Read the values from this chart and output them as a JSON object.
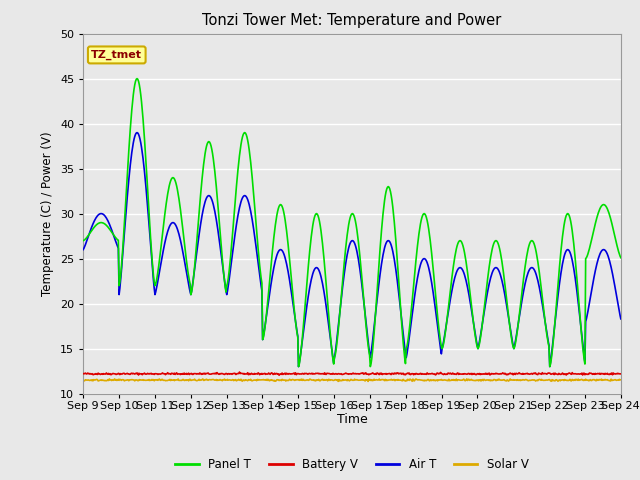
{
  "title": "Tonzi Tower Met: Temperature and Power",
  "xlabel": "Time",
  "ylabel": "Temperature (C) / Power (V)",
  "ylim": [
    10,
    50
  ],
  "background_color": "#e8e8e8",
  "plot_bg_color": "#e8e8e8",
  "annotation_text": "TZ_tmet",
  "annotation_color": "#8b0000",
  "annotation_bg": "#ffff99",
  "annotation_edge": "#ccaa00",
  "xtick_labels": [
    "Sep 9",
    "Sep 10",
    "Sep 11",
    "Sep 12",
    "Sep 13",
    "Sep 14",
    "Sep 15",
    "Sep 16",
    "Sep 17",
    "Sep 18",
    "Sep 19",
    "Sep 20",
    "Sep 21",
    "Sep 22",
    "Sep 23",
    "Sep 24"
  ],
  "grid_color": "#ffffff",
  "line_colors": {
    "panel_t": "#00dd00",
    "battery_v": "#dd0000",
    "air_t": "#0000dd",
    "solar_v": "#ddaa00"
  },
  "panel_peaks": [
    29,
    45,
    34,
    38,
    39,
    31,
    30,
    30,
    33,
    30,
    27,
    27,
    27,
    30,
    31
  ],
  "panel_troughs": [
    27,
    22,
    22,
    21,
    22,
    16,
    13,
    14,
    13,
    15,
    15,
    15,
    15,
    13,
    25
  ],
  "air_peaks": [
    30,
    39,
    29,
    32,
    32,
    26,
    24,
    27,
    27,
    25,
    24,
    24,
    24,
    26,
    26
  ],
  "air_troughs": [
    26,
    21,
    21,
    21,
    21,
    16,
    13,
    14,
    14,
    14,
    15,
    15,
    15,
    13,
    18
  ],
  "battery_v_base": 12.2,
  "solar_v_base": 11.5,
  "days": 15,
  "pts_per_day": 48,
  "yticks": [
    10,
    15,
    20,
    25,
    30,
    35,
    40,
    45,
    50
  ]
}
